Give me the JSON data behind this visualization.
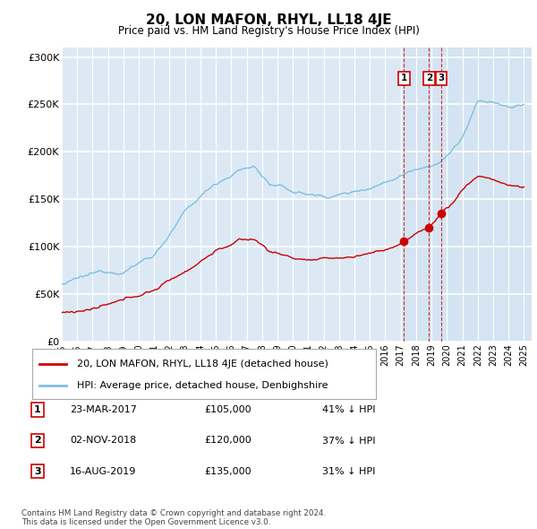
{
  "title": "20, LON MAFON, RHYL, LL18 4JE",
  "subtitle": "Price paid vs. HM Land Registry's House Price Index (HPI)",
  "ylabel_ticks": [
    "£0",
    "£50K",
    "£100K",
    "£150K",
    "£200K",
    "£250K",
    "£300K"
  ],
  "ytick_values": [
    0,
    50000,
    100000,
    150000,
    200000,
    250000,
    300000
  ],
  "ylim": [
    0,
    310000
  ],
  "xlim_start": 1995.0,
  "xlim_end": 2025.5,
  "plot_bg_color": "#dce9f5",
  "grid_color": "#ffffff",
  "hpi_color": "#7fbfdf",
  "price_color": "#cc0000",
  "marker_color": "#cc0000",
  "shade_color": "#cfe0f0",
  "shade_start": 2017.0,
  "legend_label_price": "20, LON MAFON, RHYL, LL18 4JE (detached house)",
  "legend_label_hpi": "HPI: Average price, detached house, Denbighshire",
  "transactions": [
    {
      "num": 1,
      "date": "23-MAR-2017",
      "price": "£105,000",
      "pct": "41% ↓ HPI",
      "year": 2017.22,
      "price_val": 105000
    },
    {
      "num": 2,
      "date": "02-NOV-2018",
      "price": "£120,000",
      "pct": "37% ↓ HPI",
      "year": 2018.84,
      "price_val": 120000
    },
    {
      "num": 3,
      "date": "16-AUG-2019",
      "price": "£135,000",
      "pct": "31% ↓ HPI",
      "year": 2019.62,
      "price_val": 135000
    }
  ],
  "footer": "Contains HM Land Registry data © Crown copyright and database right 2024.\nThis data is licensed under the Open Government Licence v3.0.",
  "xtick_years": [
    1995,
    1996,
    1997,
    1998,
    1999,
    2000,
    2001,
    2002,
    2003,
    2004,
    2005,
    2006,
    2007,
    2008,
    2009,
    2010,
    2011,
    2012,
    2013,
    2014,
    2015,
    2016,
    2017,
    2018,
    2019,
    2020,
    2021,
    2022,
    2023,
    2024,
    2025
  ]
}
